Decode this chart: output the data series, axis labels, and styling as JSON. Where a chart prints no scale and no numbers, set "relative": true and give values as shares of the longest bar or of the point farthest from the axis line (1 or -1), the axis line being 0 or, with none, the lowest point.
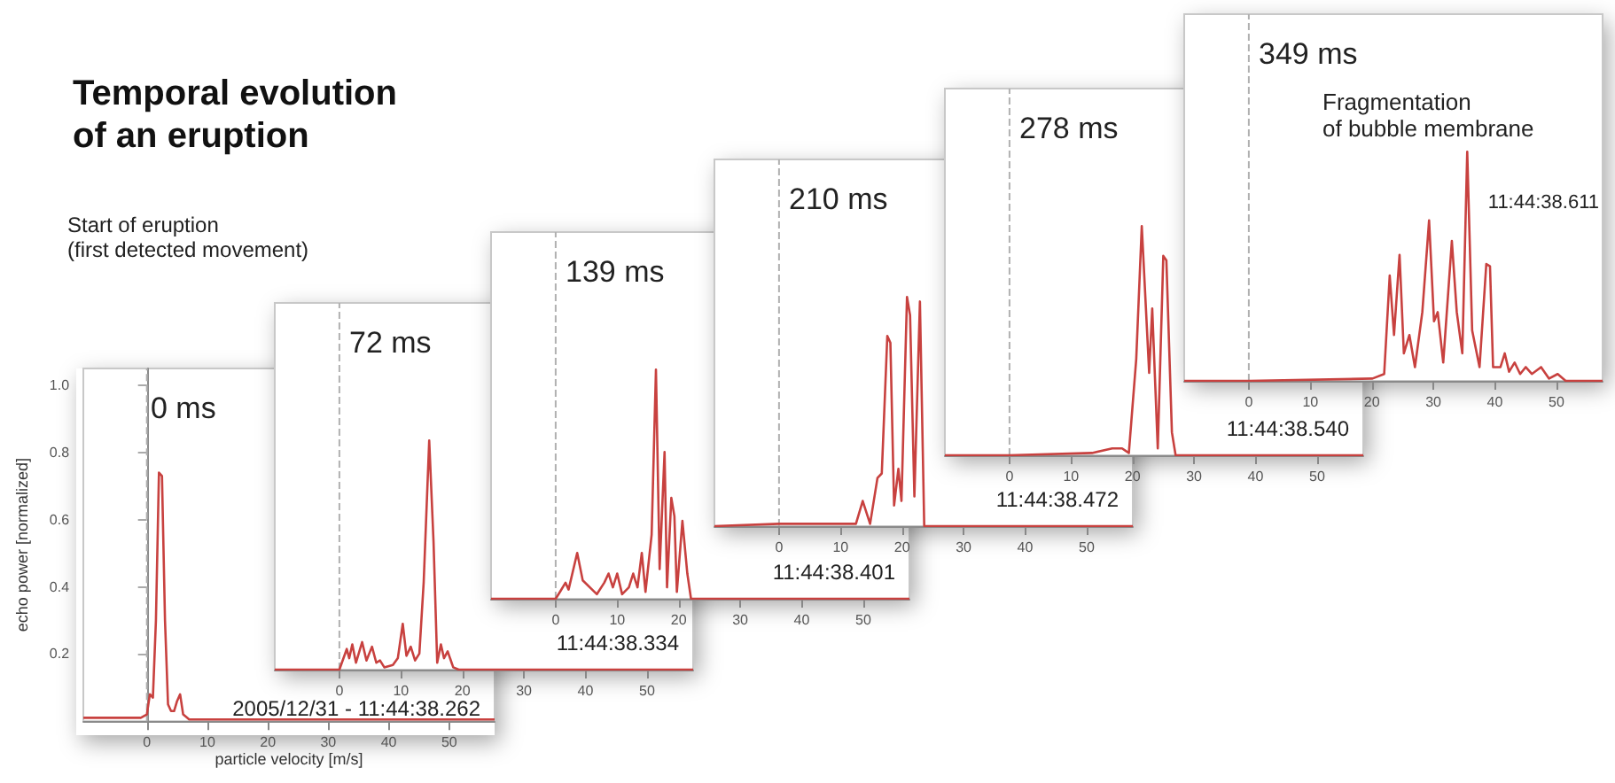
{
  "chart_data": [
    {
      "type": "line",
      "title": "Temporal evolution\nof an eruption",
      "subtitle": "0 ms",
      "xlabel": "particle velocity [m/s]",
      "ylabel": "echo power [normalized]",
      "annotations": [
        "2005/12/31 - 11:44:38.262",
        "Start of eruption\n(first detected movement)"
      ],
      "xlim": [
        -10.5,
        57.5
      ],
      "xticks": [
        0,
        10,
        20,
        30,
        40,
        50
      ],
      "ylim": [
        0,
        1.05
      ],
      "yticks": [
        {
          "value": 0.2,
          "label": "0.2"
        },
        {
          "value": 0.4,
          "label": "0.4"
        },
        {
          "value": 0.6,
          "label": "0.6"
        },
        {
          "value": 0.8,
          "label": "0.8"
        },
        {
          "value": 1,
          "label": "1.0"
        }
      ],
      "marker": "none",
      "ref_lines": [
        {
          "axis": "x",
          "value": 0,
          "color": "#b0b0b0",
          "line_style": "dashed"
        }
      ],
      "series": [
        {
          "color": "#c8413f",
          "x": [
            -10.5,
            -1,
            0,
            0.5,
            1,
            1.5,
            2,
            2.5,
            3,
            3.5,
            4,
            4.5,
            5,
            5.5,
            6,
            7,
            57.5
          ],
          "values": [
            0.01,
            0.01,
            0.02,
            0.08,
            0.07,
            0.3,
            0.74,
            0.73,
            0.3,
            0.05,
            0.03,
            0.03,
            0.06,
            0.08,
            0.02,
            0.005,
            0.005
          ]
        }
      ]
    },
    {
      "type": "line",
      "subtitle": "72 ms",
      "annotations": [
        "11:44:38.334"
      ],
      "xlim": [
        -10.5,
        57.5
      ],
      "xticks": [
        0,
        10,
        20,
        30,
        40,
        50
      ],
      "relative": true,
      "marker": "none",
      "ref_lines": [
        {
          "axis": "x",
          "value": 0,
          "color": "#b0b0b0",
          "line_style": "dashed"
        }
      ],
      "series": [
        {
          "color": "#c8413f",
          "x": [
            -10.5,
            0,
            1.2,
            1.6,
            2.1,
            2.7,
            3.7,
            4.4,
            5.3,
            6.0,
            6.6,
            7.3,
            8.7,
            9.5,
            10.3,
            10.9,
            11.6,
            12.3,
            13.0,
            13.7,
            14.6,
            15.3,
            15.9,
            16.5,
            17.0,
            17.6,
            18.5,
            19.4,
            57.5
          ],
          "values": [
            0,
            0,
            0.09,
            0.05,
            0.11,
            0.03,
            0.12,
            0.04,
            0.1,
            0.03,
            0.04,
            0.01,
            0.02,
            0.05,
            0.2,
            0.06,
            0.1,
            0.04,
            0.07,
            0.38,
            1,
            0.56,
            0.03,
            0.11,
            0.05,
            0.08,
            0.01,
            0,
            0
          ]
        }
      ]
    },
    {
      "type": "line",
      "subtitle": "139 ms",
      "annotations": [
        "11:44:38.401"
      ],
      "xlim": [
        -10.5,
        57.5
      ],
      "xticks": [
        0,
        10,
        20,
        30,
        40,
        50
      ],
      "relative": true,
      "marker": "none",
      "ref_lines": [
        {
          "axis": "x",
          "value": 0,
          "color": "#b0b0b0",
          "line_style": "dashed"
        }
      ],
      "series": [
        {
          "color": "#c8413f",
          "x": [
            -10.5,
            0,
            0.7,
            1.6,
            2.1,
            3.5,
            4.4,
            6.7,
            7.9,
            8.6,
            9.3,
            10.0,
            10.8,
            11.9,
            12.6,
            13.3,
            14.0,
            14.6,
            15.6,
            16.3,
            16.9,
            17.7,
            18.1,
            18.8,
            19.3,
            19.7,
            20.6,
            21.4,
            22.0,
            57.5
          ],
          "values": [
            0,
            0,
            0.03,
            0.07,
            0.04,
            0.2,
            0.08,
            0.02,
            0.07,
            0.11,
            0.05,
            0.11,
            0.02,
            0.05,
            0.11,
            0.05,
            0.2,
            0.03,
            0.28,
            1,
            0.13,
            0.64,
            0.05,
            0.44,
            0.36,
            0.03,
            0.34,
            0.11,
            0,
            0
          ]
        }
      ]
    },
    {
      "type": "line",
      "subtitle": "210 ms",
      "annotations": [
        "11:44:38.472"
      ],
      "xlim": [
        -10.5,
        57.5
      ],
      "xticks": [
        0,
        10,
        20,
        30,
        40,
        50
      ],
      "relative": true,
      "marker": "none",
      "ref_lines": [
        {
          "axis": "x",
          "value": 0,
          "color": "#b0b0b0",
          "line_style": "dashed"
        }
      ],
      "series": [
        {
          "color": "#c8413f",
          "x": [
            -10.5,
            0,
            10.0,
            12.5,
            13.6,
            14.8,
            16.0,
            16.7,
            17.6,
            18.1,
            18.7,
            19.4,
            19.9,
            20.8,
            21.3,
            22.0,
            22.9,
            23.6,
            57.5
          ],
          "values": [
            0,
            0.01,
            0.01,
            0.01,
            0.11,
            0.01,
            0.21,
            0.23,
            0.83,
            0.8,
            0.09,
            0.25,
            0.11,
            1,
            0.92,
            0.13,
            0.98,
            0,
            0
          ]
        }
      ]
    },
    {
      "type": "line",
      "subtitle": "278 ms",
      "annotations": [
        "11:44:38.540"
      ],
      "xlim": [
        -10.5,
        57.5
      ],
      "xticks": [
        0,
        10,
        20,
        30,
        40,
        50
      ],
      "relative": true,
      "marker": "none",
      "ref_lines": [
        {
          "axis": "x",
          "value": 0,
          "color": "#b0b0b0",
          "line_style": "dashed"
        }
      ],
      "series": [
        {
          "color": "#c8413f",
          "x": [
            -10.5,
            0,
            13.4,
            16.7,
            18.3,
            19.4,
            20.6,
            21.5,
            22.7,
            23.2,
            24.1,
            25.0,
            25.5,
            26.4,
            27.0,
            57.5
          ],
          "values": [
            0,
            0,
            0.01,
            0.03,
            0.03,
            0.01,
            0.42,
            1,
            0.36,
            0.64,
            0.03,
            0.87,
            0.85,
            0.1,
            0,
            0
          ]
        }
      ]
    },
    {
      "type": "line",
      "subtitle": "349 ms",
      "annotations": [
        "11:44:38.611",
        "Fragmentation\nof bubble membrane"
      ],
      "xlim": [
        -10.5,
        57.5
      ],
      "xticks": [
        0,
        10,
        20,
        30,
        40,
        50
      ],
      "relative": true,
      "marker": "none",
      "ref_lines": [
        {
          "axis": "x",
          "value": 0,
          "color": "#b0b0b0",
          "line_style": "dashed"
        }
      ],
      "series": [
        {
          "color": "#c8413f",
          "x": [
            -10.5,
            0,
            20.1,
            22.0,
            22.9,
            23.6,
            24.5,
            25.2,
            26.1,
            27.0,
            28.2,
            29.3,
            30.1,
            30.7,
            31.6,
            33.0,
            33.8,
            34.7,
            35.5,
            36.3,
            37.5,
            38.6,
            39.2,
            39.7,
            40.9,
            41.6,
            42.3,
            43.2,
            44.1,
            45.0,
            46.0,
            47.5,
            48.8,
            50.2,
            51.5,
            57.5
          ],
          "values": [
            0,
            0,
            0.01,
            0.03,
            0.46,
            0.2,
            0.55,
            0.12,
            0.2,
            0.06,
            0.3,
            0.7,
            0.26,
            0.3,
            0.08,
            0.61,
            0.3,
            0.12,
            1,
            0.22,
            0.06,
            0.51,
            0.5,
            0.06,
            0.06,
            0.12,
            0.04,
            0.08,
            0.03,
            0.06,
            0.03,
            0.06,
            0.01,
            0.03,
            0,
            0
          ]
        }
      ]
    }
  ]
}
